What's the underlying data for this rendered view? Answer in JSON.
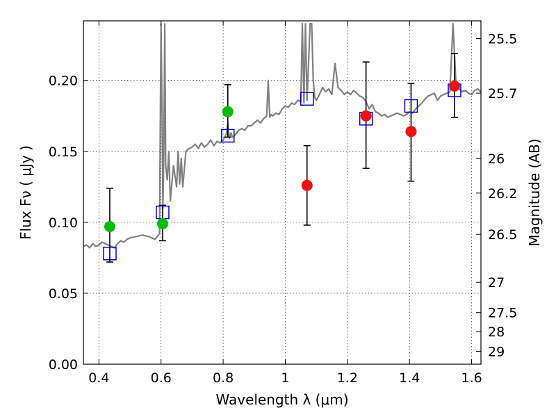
{
  "chart_data": {
    "type": "scatter",
    "xlabel": "Wavelength  λ (μm)",
    "ylabel": "Flux  Fν  ( μJy )",
    "ylabel_right": "Magnitude (AB)",
    "xlim": [
      0.35,
      1.63
    ],
    "ylim": [
      0.0,
      0.242
    ],
    "grid": true,
    "x_ticks": [
      0.4,
      0.6,
      0.8,
      1.0,
      1.2,
      1.4,
      1.6
    ],
    "x_tick_labels": [
      "0.4",
      "0.6",
      "0.8",
      "1",
      "1.2",
      "1.4",
      "1.6"
    ],
    "y_ticks": [
      0.0,
      0.05,
      0.1,
      0.15,
      0.2
    ],
    "y_tick_labels": [
      "0.00",
      "0.05",
      "0.10",
      "0.15",
      "0.20"
    ],
    "right_ticks": [
      {
        "label": "25.5",
        "flux": 0.2295
      },
      {
        "label": "25.7",
        "flux": 0.191
      },
      {
        "label": "26",
        "flux": 0.145
      },
      {
        "label": "26.2",
        "flux": 0.1206
      },
      {
        "label": "26.5",
        "flux": 0.0915
      },
      {
        "label": "27",
        "flux": 0.0577
      },
      {
        "label": "27.5",
        "flux": 0.0364
      },
      {
        "label": "28",
        "flux": 0.023
      },
      {
        "label": "29",
        "flux": 0.0091
      }
    ],
    "colors": {
      "spectrum": "#808080",
      "green": "#00bb00",
      "red": "#ee1111",
      "model": "#0000cc",
      "errorbar": "#000000"
    },
    "series": [
      {
        "type": "line",
        "x": [
          0.35,
          0.36,
          0.37,
          0.38,
          0.39,
          0.4,
          0.41,
          0.42,
          0.43,
          0.44,
          0.45,
          0.46,
          0.47,
          0.48,
          0.49,
          0.5,
          0.52,
          0.54,
          0.56,
          0.58,
          0.595,
          0.6,
          0.603,
          0.606,
          0.609,
          0.612,
          0.615,
          0.62,
          0.625,
          0.63,
          0.64,
          0.65,
          0.655,
          0.66,
          0.665,
          0.67,
          0.68,
          0.69,
          0.7,
          0.71,
          0.72,
          0.73,
          0.74,
          0.75,
          0.76,
          0.77,
          0.78,
          0.79,
          0.8,
          0.81,
          0.815,
          0.82,
          0.825,
          0.83,
          0.84,
          0.85,
          0.86,
          0.87,
          0.88,
          0.89,
          0.9,
          0.91,
          0.92,
          0.93,
          0.94,
          0.945,
          0.95,
          0.955,
          0.96,
          0.97,
          0.98,
          0.99,
          1.0,
          1.01,
          1.02,
          1.03,
          1.04,
          1.05,
          1.055,
          1.06,
          1.065,
          1.07,
          1.08,
          1.085,
          1.09,
          1.095,
          1.1,
          1.11,
          1.12,
          1.13,
          1.14,
          1.15,
          1.16,
          1.17,
          1.18,
          1.19,
          1.2,
          1.21,
          1.22,
          1.23,
          1.24,
          1.25,
          1.26,
          1.27,
          1.28,
          1.29,
          1.3,
          1.31,
          1.32,
          1.33,
          1.34,
          1.35,
          1.36,
          1.37,
          1.38,
          1.39,
          1.4,
          1.41,
          1.42,
          1.43,
          1.44,
          1.45,
          1.46,
          1.47,
          1.48,
          1.49,
          1.5,
          1.51,
          1.52,
          1.53,
          1.54,
          1.55,
          1.56,
          1.57,
          1.58,
          1.59,
          1.6,
          1.61,
          1.62,
          1.63
        ],
        "y": [
          0.083,
          0.084,
          0.082,
          0.085,
          0.083,
          0.084,
          0.086,
          0.085,
          0.084,
          0.083,
          0.082,
          0.085,
          0.087,
          0.086,
          0.088,
          0.089,
          0.09,
          0.091,
          0.09,
          0.088,
          0.092,
          0.24,
          0.18,
          0.11,
          0.15,
          0.24,
          0.14,
          0.13,
          0.15,
          0.115,
          0.14,
          0.125,
          0.15,
          0.127,
          0.145,
          0.125,
          0.15,
          0.152,
          0.153,
          0.155,
          0.152,
          0.156,
          0.153,
          0.155,
          0.158,
          0.154,
          0.157,
          0.156,
          0.158,
          0.162,
          0.17,
          0.159,
          0.163,
          0.16,
          0.162,
          0.165,
          0.166,
          0.165,
          0.168,
          0.168,
          0.17,
          0.172,
          0.17,
          0.173,
          0.175,
          0.2,
          0.174,
          0.176,
          0.175,
          0.177,
          0.176,
          0.18,
          0.182,
          0.181,
          0.184,
          0.183,
          0.186,
          0.185,
          0.24,
          0.184,
          0.24,
          0.186,
          0.24,
          0.24,
          0.2,
          0.188,
          0.186,
          0.19,
          0.195,
          0.192,
          0.194,
          0.19,
          0.212,
          0.195,
          0.193,
          0.19,
          0.192,
          0.19,
          0.193,
          0.191,
          0.189,
          0.188,
          0.185,
          0.18,
          0.183,
          0.178,
          0.177,
          0.175,
          0.176,
          0.174,
          0.175,
          0.176,
          0.177,
          0.176,
          0.175,
          0.176,
          0.178,
          0.177,
          0.18,
          0.182,
          0.184,
          0.187,
          0.189,
          0.19,
          0.191,
          0.186,
          0.189,
          0.19,
          0.191,
          0.192,
          0.24,
          0.195,
          0.194,
          0.192,
          0.193,
          0.191,
          0.19,
          0.193,
          0.194,
          0.192
        ]
      },
      {
        "type": "scatter",
        "marker": "square",
        "x": [
          0.435,
          0.605,
          0.815,
          1.07,
          1.26,
          1.405,
          1.545
        ],
        "y": [
          0.078,
          0.107,
          0.161,
          0.187,
          0.173,
          0.182,
          0.193
        ]
      },
      {
        "type": "scatter",
        "marker": "circle-green",
        "x": [
          0.435,
          0.605,
          0.815
        ],
        "y": [
          0.097,
          0.099,
          0.178
        ],
        "err_low": [
          0.072,
          0.087,
          0.16
        ],
        "err_high": [
          0.124,
          0.112,
          0.197
        ]
      },
      {
        "type": "scatter",
        "marker": "circle-red",
        "x": [
          1.07,
          1.26,
          1.405,
          1.545
        ],
        "y": [
          0.126,
          0.175,
          0.164,
          0.196
        ],
        "err_low": [
          0.098,
          0.138,
          0.129,
          0.174
        ],
        "err_high": [
          0.154,
          0.213,
          0.198,
          0.219
        ]
      }
    ]
  }
}
